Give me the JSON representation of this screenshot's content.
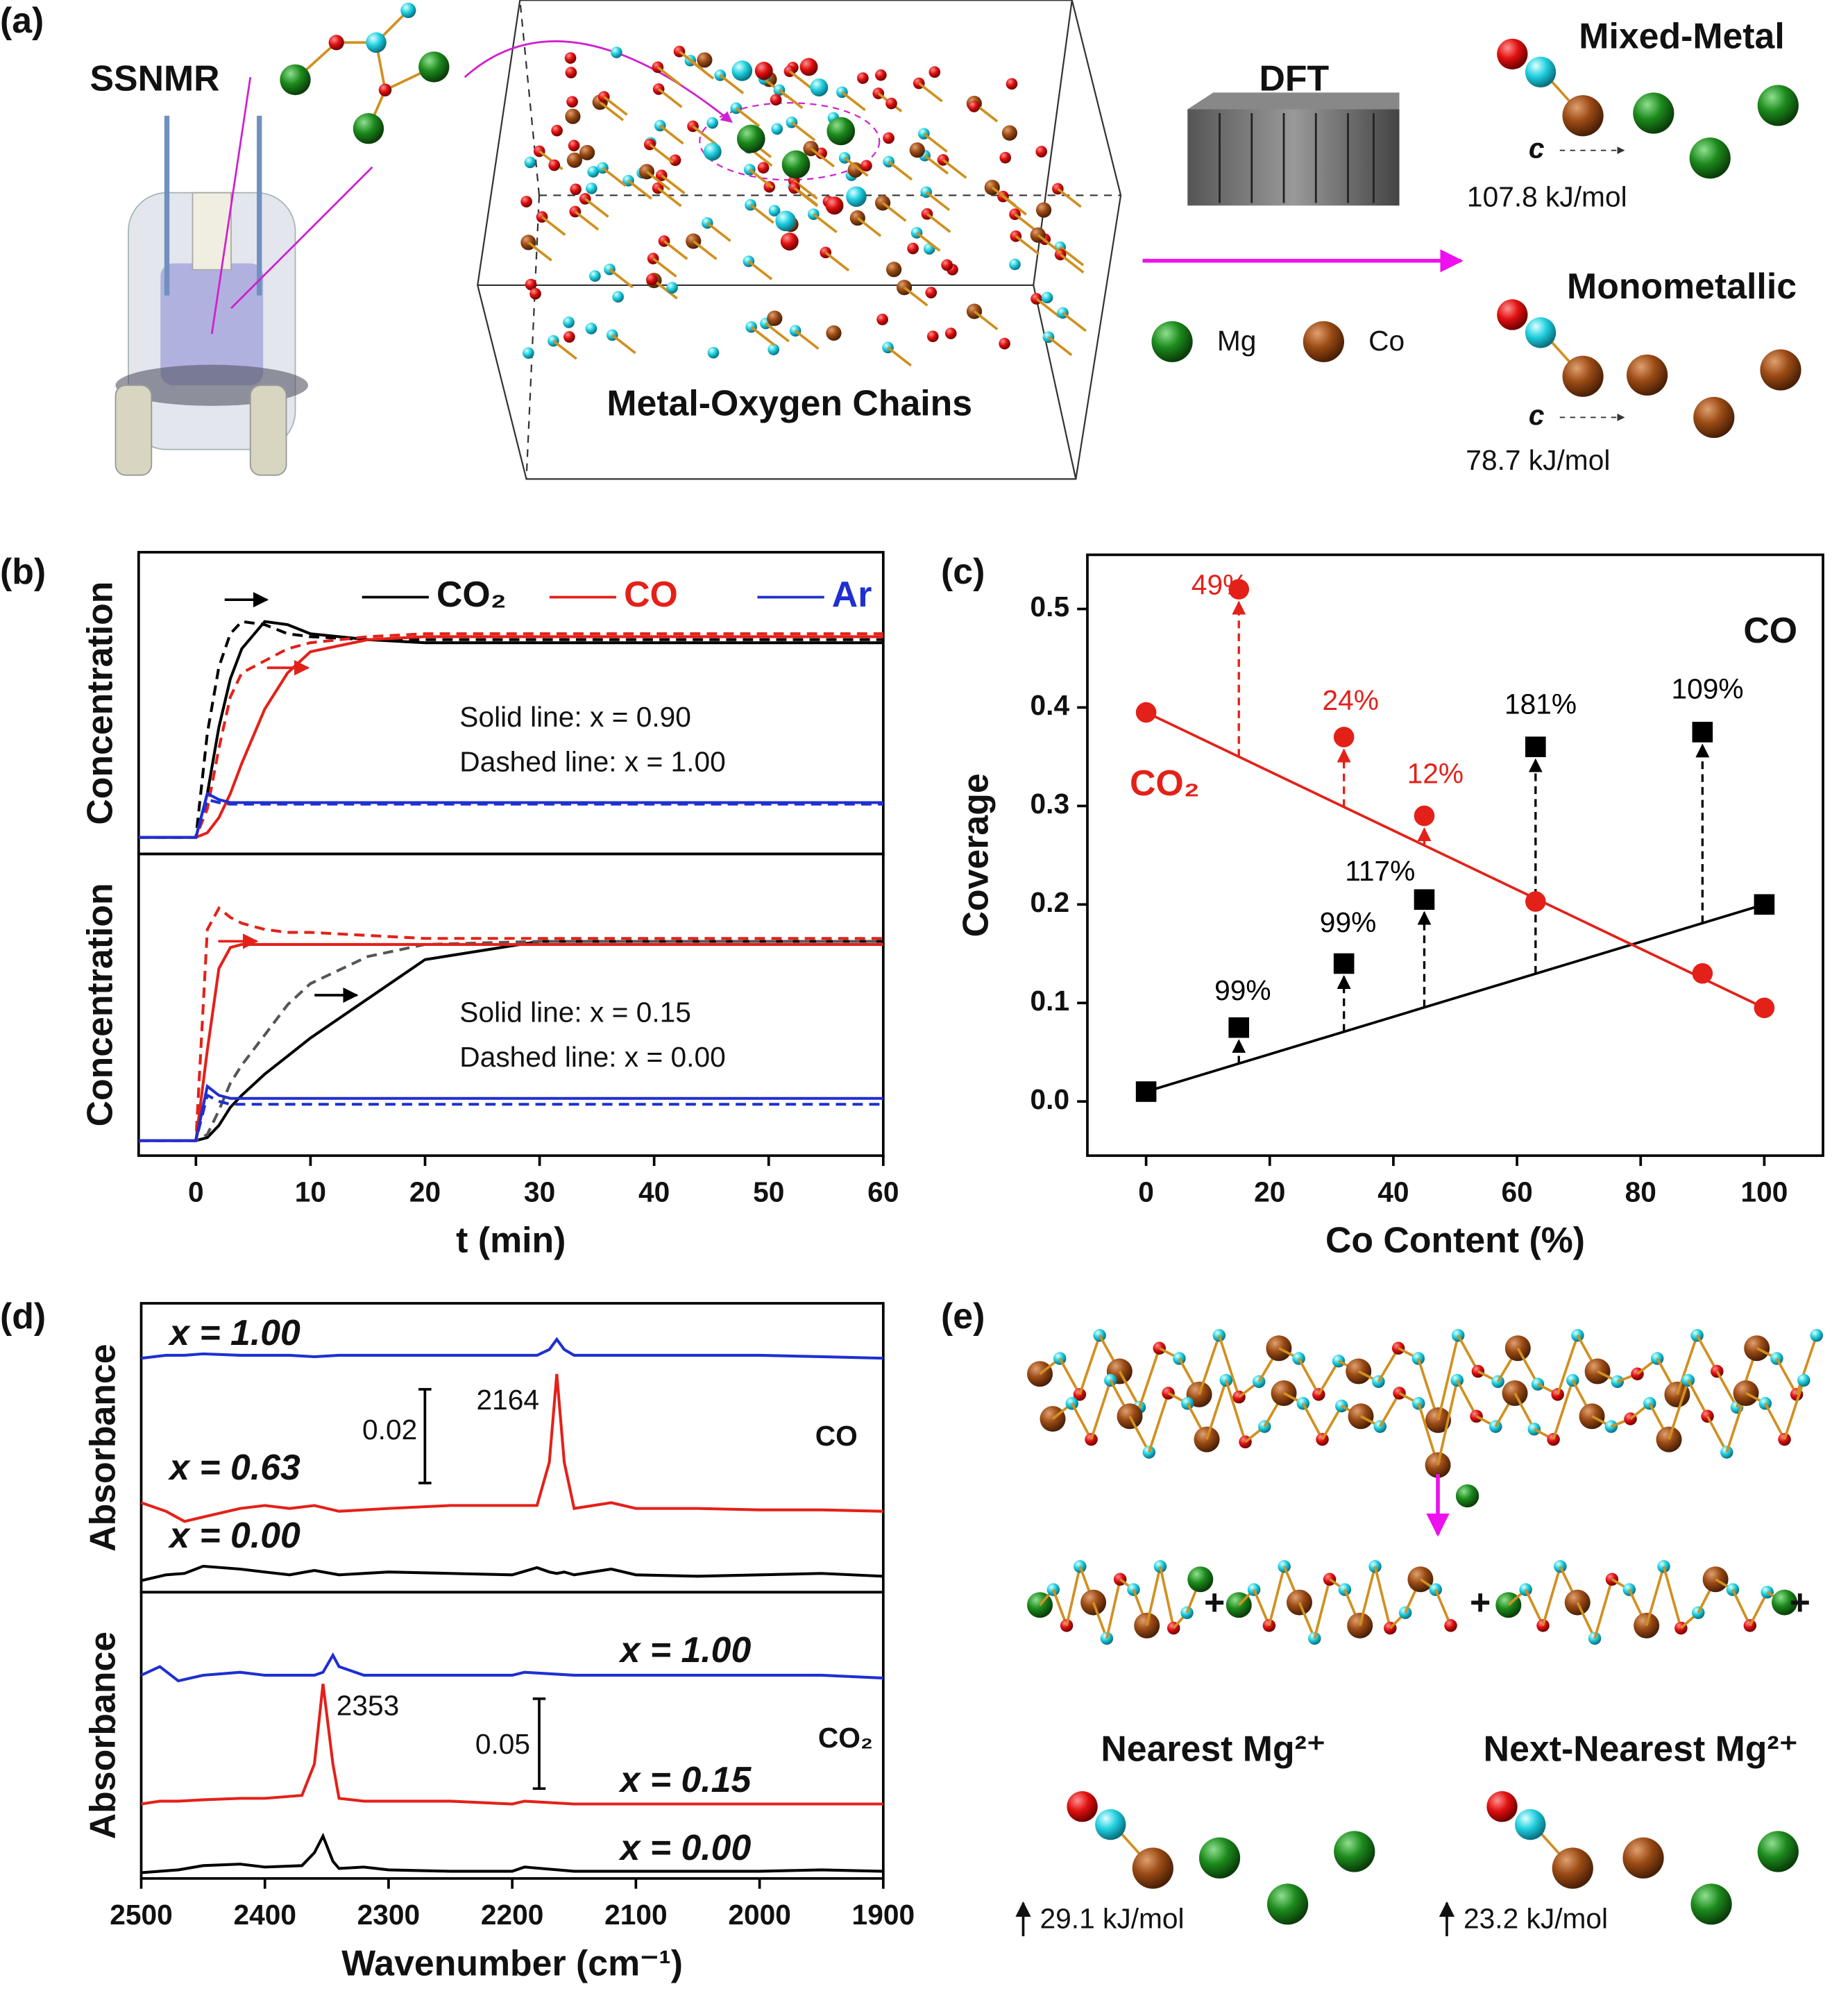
{
  "labels": [
    "(a)",
    "(b)",
    "(c)",
    "(d)",
    "(e)"
  ],
  "panel_a": {
    "ssnmr": "SSNMR",
    "chains": "Metal-Oxygen Chains",
    "dft": "DFT",
    "mixed": "Mixed-Metal",
    "mono": "Monometallic",
    "axis_mixed": "c",
    "axis_mono": "c",
    "mixed_energy": "107.8 kJ/mol",
    "mono_energy": "78.7 kJ/mol",
    "mg": "Mg",
    "co": "Co"
  },
  "panel_e": {
    "nearest": "Nearest Mg²⁺",
    "next": "Next-Nearest Mg²⁺",
    "nearest_energy": "29.1 kJ/mol",
    "next_energy": "23.2 kJ/mol",
    "plus": [
      "+",
      "+",
      "+"
    ]
  },
  "chart_data": [
    {
      "type": "line",
      "ylabel": "Concentration",
      "xlim": [
        -5,
        60
      ],
      "ylim": [
        0,
        1
      ],
      "legend": true,
      "annotations": [
        "Solid line: x = 0.90",
        "Dashed line: x = 1.00"
      ],
      "x": [
        -5,
        0,
        1,
        2,
        3,
        4,
        6,
        8,
        10,
        15,
        20,
        30,
        45,
        60
      ],
      "series": [
        {
          "name": "CO₂",
          "color": "#000000",
          "dashed": false,
          "values": [
            0.055,
            0.055,
            0.2,
            0.42,
            0.58,
            0.68,
            0.77,
            0.76,
            0.73,
            0.71,
            0.7,
            0.7,
            0.7,
            0.7
          ]
        },
        {
          "color": "#000000",
          "dashed": true,
          "values": [
            0.055,
            0.055,
            0.4,
            0.62,
            0.73,
            0.77,
            0.76,
            0.73,
            0.72,
            0.71,
            0.71,
            0.71,
            0.71,
            0.71
          ]
        },
        {
          "name": "CO",
          "color": "#e32119",
          "dashed": false,
          "values": [
            0.055,
            0.055,
            0.07,
            0.12,
            0.2,
            0.3,
            0.48,
            0.6,
            0.67,
            0.71,
            0.72,
            0.72,
            0.72,
            0.72
          ]
        },
        {
          "color": "#e32119",
          "dashed": true,
          "values": [
            0.055,
            0.055,
            0.15,
            0.35,
            0.52,
            0.6,
            0.64,
            0.68,
            0.7,
            0.72,
            0.73,
            0.73,
            0.73,
            0.73
          ]
        },
        {
          "name": "Ar",
          "color": "#1f2fd0",
          "dashed": false,
          "values": [
            0.055,
            0.055,
            0.2,
            0.18,
            0.17,
            0.17,
            0.17,
            0.17,
            0.17,
            0.17,
            0.17,
            0.17,
            0.17,
            0.17
          ]
        },
        {
          "color": "#1f2fd0",
          "dashed": true,
          "values": [
            0.055,
            0.055,
            0.18,
            0.17,
            0.165,
            0.165,
            0.165,
            0.165,
            0.165,
            0.165,
            0.165,
            0.165,
            0.165,
            0.165
          ]
        }
      ]
    },
    {
      "type": "line",
      "ylabel": "Concentration",
      "xlabel": "t (min)",
      "xlim": [
        -5,
        60
      ],
      "ylim": [
        0,
        1
      ],
      "xticks": [
        0,
        10,
        20,
        30,
        40,
        50,
        60
      ],
      "legend": false,
      "annotations": [
        "Solid line: x = 0.15",
        "Dashed line: x = 0.00"
      ],
      "x": [
        -5,
        0,
        1,
        2,
        3,
        4,
        6,
        8,
        10,
        15,
        20,
        30,
        45,
        60
      ],
      "series": [
        {
          "color": "#000000",
          "dashed": false,
          "values": [
            0.05,
            0.05,
            0.06,
            0.1,
            0.16,
            0.2,
            0.27,
            0.33,
            0.39,
            0.52,
            0.65,
            0.71,
            0.71,
            0.71
          ]
        },
        {
          "color": "#555555",
          "dashed": true,
          "values": [
            0.05,
            0.05,
            0.07,
            0.15,
            0.24,
            0.3,
            0.4,
            0.5,
            0.57,
            0.66,
            0.7,
            0.71,
            0.71,
            0.71
          ]
        },
        {
          "color": "#e32119",
          "dashed": false,
          "values": [
            0.05,
            0.05,
            0.35,
            0.62,
            0.69,
            0.7,
            0.7,
            0.7,
            0.7,
            0.7,
            0.7,
            0.7,
            0.7,
            0.7
          ]
        },
        {
          "color": "#e32119",
          "dashed": true,
          "values": [
            0.05,
            0.05,
            0.75,
            0.82,
            0.79,
            0.77,
            0.75,
            0.74,
            0.74,
            0.73,
            0.72,
            0.72,
            0.72,
            0.72
          ]
        },
        {
          "color": "#1f2fd0",
          "dashed": false,
          "values": [
            0.05,
            0.05,
            0.23,
            0.2,
            0.19,
            0.19,
            0.19,
            0.19,
            0.19,
            0.19,
            0.19,
            0.19,
            0.19,
            0.19
          ]
        },
        {
          "color": "#1f2fd0",
          "dashed": true,
          "values": [
            0.05,
            0.05,
            0.2,
            0.18,
            0.17,
            0.17,
            0.17,
            0.17,
            0.17,
            0.17,
            0.17,
            0.17,
            0.17,
            0.17
          ]
        }
      ]
    },
    {
      "type": "scatter",
      "xlabel": "Co Content (%)",
      "ylabel": "Coverage",
      "xlim": [
        -9.5,
        109.5
      ],
      "ylim": [
        -0.055,
        0.555
      ],
      "xticks": [
        0,
        20,
        40,
        60,
        80,
        100
      ],
      "yticks": [
        {
          "value": 0,
          "label": "0.0"
        },
        0.1,
        0.2,
        0.3,
        0.4,
        0.5
      ],
      "series": [
        {
          "name": "CO",
          "color": "#000000",
          "marker": "square",
          "x": [
            0,
            15,
            32,
            45,
            63,
            90,
            100
          ],
          "values": [
            0.01,
            0.075,
            0.14,
            0.205,
            0.36,
            0.375,
            0.2
          ],
          "fit_x": [
            0,
            100
          ],
          "fit": [
            0.01,
            0.2
          ]
        },
        {
          "name": "CO₂",
          "color": "#e32119",
          "marker": "circle",
          "x": [
            0,
            15,
            32,
            45,
            63,
            90,
            100
          ],
          "values": [
            0.395,
            0.52,
            0.37,
            0.29,
            0.203,
            0.13,
            0.095
          ],
          "fit_x": [
            0,
            100
          ],
          "fit": [
            0.395,
            0.095
          ]
        }
      ],
      "annotations": [
        {
          "text": "49%",
          "color": "#e32119"
        },
        {
          "text": "24%",
          "color": "#e32119"
        },
        {
          "text": "12%",
          "color": "#e32119"
        },
        {
          "text": "99%",
          "color": "#000000"
        },
        {
          "text": "99%",
          "color": "#000000"
        },
        {
          "text": "117%",
          "color": "#000000"
        },
        {
          "text": "181%",
          "color": "#000000"
        },
        {
          "text": "109%",
          "color": "#000000"
        }
      ]
    },
    {
      "type": "line",
      "ylabel": "Absorbance",
      "xlim": [
        2500,
        1900
      ],
      "ylim": [
        0,
        1
      ],
      "annotations": [
        "CO",
        "2164",
        "0.02"
      ],
      "x": [
        2500,
        2480,
        2465,
        2450,
        2420,
        2400,
        2380,
        2360,
        2340,
        2300,
        2250,
        2200,
        2180,
        2170,
        2164,
        2158,
        2150,
        2120,
        2100,
        2050,
        2000,
        1950,
        1900
      ],
      "series": [
        {
          "name": "x = 1.00",
          "color": "#1f2fd0",
          "dashed": false,
          "values": [
            0.81,
            0.82,
            0.82,
            0.825,
            0.82,
            0.82,
            0.82,
            0.815,
            0.82,
            0.82,
            0.82,
            0.82,
            0.82,
            0.84,
            0.875,
            0.84,
            0.82,
            0.82,
            0.82,
            0.82,
            0.82,
            0.815,
            0.81
          ]
        },
        {
          "name": "x = 0.63",
          "color": "#e32119",
          "dashed": false,
          "values": [
            0.31,
            0.28,
            0.245,
            0.26,
            0.29,
            0.3,
            0.29,
            0.3,
            0.28,
            0.29,
            0.3,
            0.3,
            0.3,
            0.45,
            0.755,
            0.45,
            0.29,
            0.31,
            0.29,
            0.29,
            0.285,
            0.285,
            0.28
          ]
        },
        {
          "name": "x = 0.00",
          "color": "#000000",
          "dashed": false,
          "values": [
            0.04,
            0.06,
            0.065,
            0.09,
            0.08,
            0.07,
            0.06,
            0.075,
            0.06,
            0.07,
            0.065,
            0.06,
            0.085,
            0.07,
            0.065,
            0.07,
            0.06,
            0.08,
            0.06,
            0.055,
            0.06,
            0.065,
            0.055
          ]
        }
      ]
    },
    {
      "type": "line",
      "ylabel": "Absorbance",
      "xlabel": "Wavenumber (cm⁻¹)",
      "xlim": [
        2500,
        1900
      ],
      "ylim": [
        0,
        1
      ],
      "xticks": [
        2500,
        2400,
        2300,
        2200,
        2100,
        2000,
        1900
      ],
      "annotations": [
        "CO₂",
        "2353",
        "0.05"
      ],
      "x": [
        2500,
        2485,
        2470,
        2450,
        2420,
        2400,
        2370,
        2360,
        2353,
        2345,
        2340,
        2320,
        2300,
        2250,
        2200,
        2190,
        2150,
        2100,
        2050,
        2000,
        1950,
        1900
      ],
      "series": [
        {
          "name": "x = 1.00",
          "color": "#1f2fd0",
          "dashed": false,
          "values": [
            0.71,
            0.74,
            0.69,
            0.71,
            0.72,
            0.71,
            0.71,
            0.71,
            0.72,
            0.78,
            0.74,
            0.71,
            0.71,
            0.71,
            0.71,
            0.72,
            0.71,
            0.71,
            0.71,
            0.71,
            0.71,
            0.7
          ]
        },
        {
          "name": "x = 0.15",
          "color": "#e32119",
          "dashed": false,
          "values": [
            0.26,
            0.27,
            0.27,
            0.275,
            0.28,
            0.28,
            0.29,
            0.4,
            0.68,
            0.4,
            0.28,
            0.27,
            0.27,
            0.27,
            0.26,
            0.27,
            0.26,
            0.26,
            0.26,
            0.26,
            0.26,
            0.26
          ]
        },
        {
          "name": "x = 0.00",
          "color": "#000000",
          "dashed": false,
          "values": [
            0.02,
            0.025,
            0.03,
            0.045,
            0.05,
            0.04,
            0.045,
            0.09,
            0.148,
            0.06,
            0.035,
            0.04,
            0.03,
            0.025,
            0.025,
            0.04,
            0.025,
            0.025,
            0.025,
            0.025,
            0.03,
            0.025
          ]
        }
      ]
    }
  ]
}
